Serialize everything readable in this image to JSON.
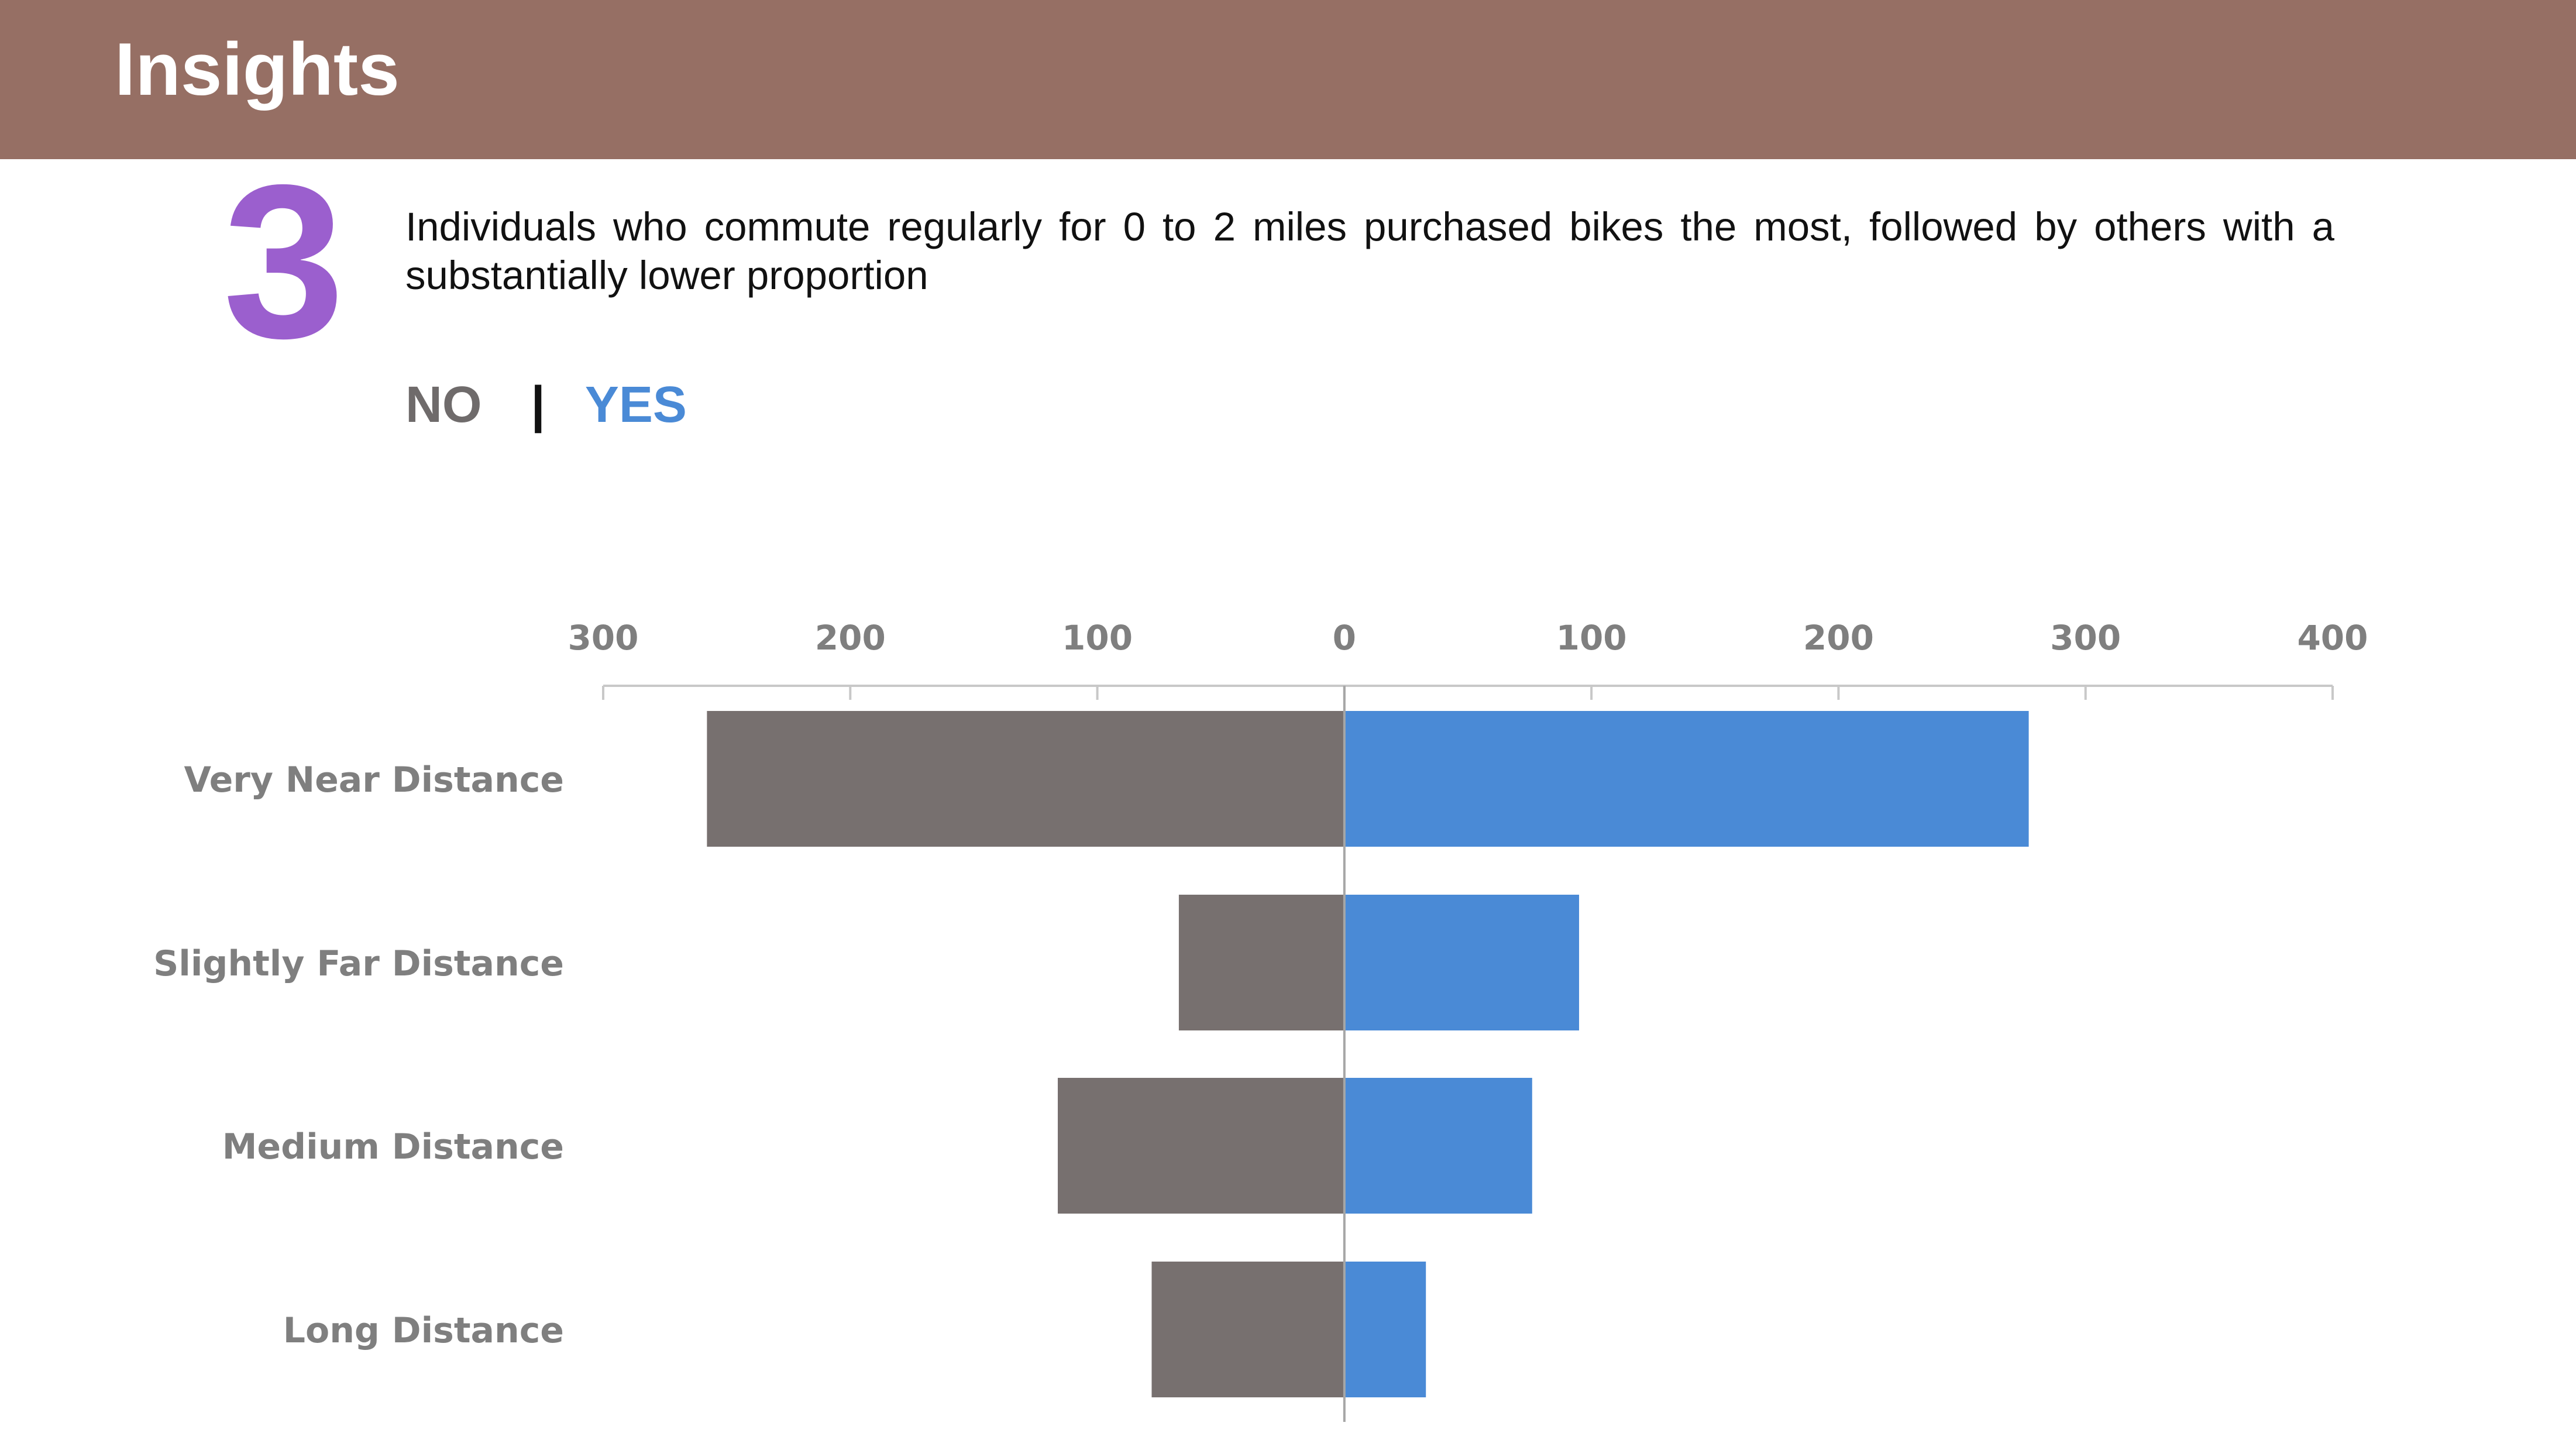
{
  "header": {
    "title": "Insights"
  },
  "insight": {
    "number": "3",
    "text": "Individuals who commute regularly for 0 to 2 miles purchased bikes the most, followed by others with a substantially lower proportion"
  },
  "legend": {
    "no_label": "NO",
    "separator": "|",
    "yes_label": "YES"
  },
  "colors": {
    "header": "#966f64",
    "accent_number": "#9b5fce",
    "no": "#77706f",
    "yes": "#4a8ad6",
    "axis_text": "#7f7f7f"
  },
  "chart_data": {
    "type": "bar",
    "orientation": "horizontal-diverging",
    "categories": [
      "Very Near Distance",
      "Slightly Far Distance",
      "Medium Distance",
      "Long Distance"
    ],
    "series": [
      {
        "name": "NO",
        "values": [
          258,
          67,
          116,
          78
        ]
      },
      {
        "name": "YES",
        "values": [
          277,
          95,
          76,
          33
        ]
      }
    ],
    "xlim": [
      -300,
      400
    ],
    "xticks": [
      -300,
      -200,
      -100,
      0,
      100,
      200,
      300,
      400
    ],
    "xtick_labels": [
      "300",
      "200",
      "100",
      "0",
      "100",
      "200",
      "300",
      "400"
    ],
    "axis_position": "top",
    "legend_position": "top-left",
    "grid": false,
    "title": "",
    "xlabel": "",
    "ylabel": ""
  }
}
